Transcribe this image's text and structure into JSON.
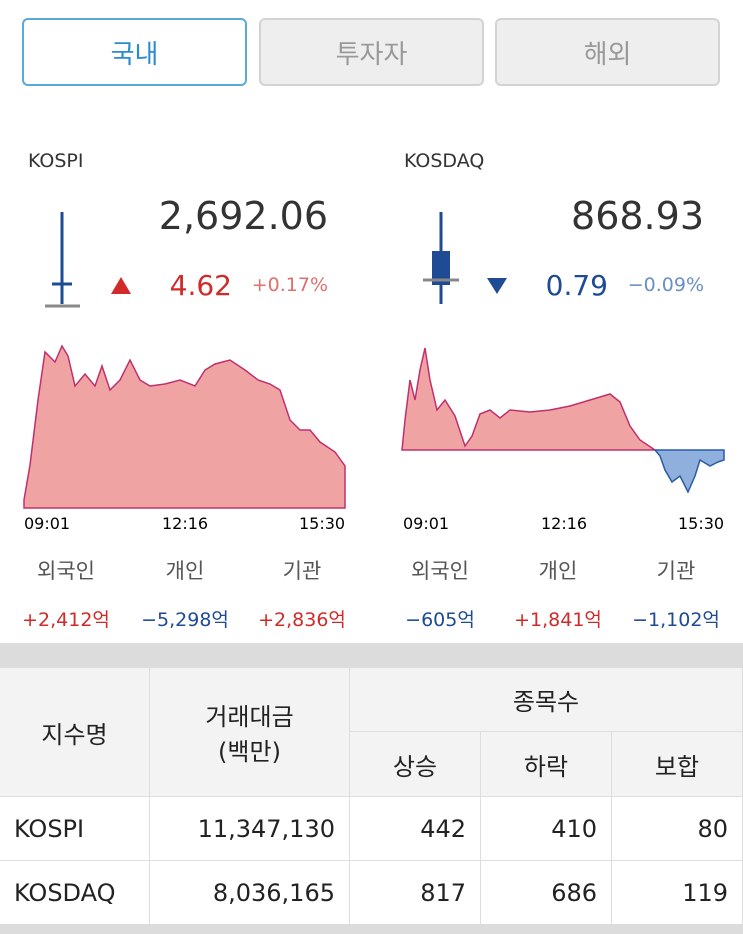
{
  "tabs": [
    "국내",
    "투자자",
    "해외"
  ],
  "indices": [
    {
      "name": "KOSPI",
      "value": "2,692.06",
      "change": "4.62",
      "change_pct": "+0.17%",
      "times": [
        "09:01",
        "12:16",
        "15:30"
      ],
      "investors": [
        {
          "label": "외국인",
          "value": "+2,412억"
        },
        {
          "label": "개인",
          "value": "−5,298억"
        },
        {
          "label": "기관",
          "value": "+2,836억"
        }
      ]
    },
    {
      "name": "KOSDAQ",
      "value": "868.93",
      "change": "0.79",
      "change_pct": "−0.09%",
      "times": [
        "09:01",
        "12:16",
        "15:30"
      ],
      "investors": [
        {
          "label": "외국인",
          "value": "−605억"
        },
        {
          "label": "개인",
          "value": "+1,841억"
        },
        {
          "label": "기관",
          "value": "−1,102억"
        }
      ]
    }
  ],
  "table": {
    "headers": {
      "name": "지수명",
      "amount": "거래대금",
      "amount_unit": "(백만)",
      "count": "종목수",
      "up": "상승",
      "down": "하락",
      "flat": "보합"
    },
    "rows": [
      [
        "KOSPI",
        "11,347,130",
        "442",
        "410",
        "80"
      ],
      [
        "KOSDAQ",
        "8,036,165",
        "817",
        "686",
        "119"
      ]
    ]
  }
}
